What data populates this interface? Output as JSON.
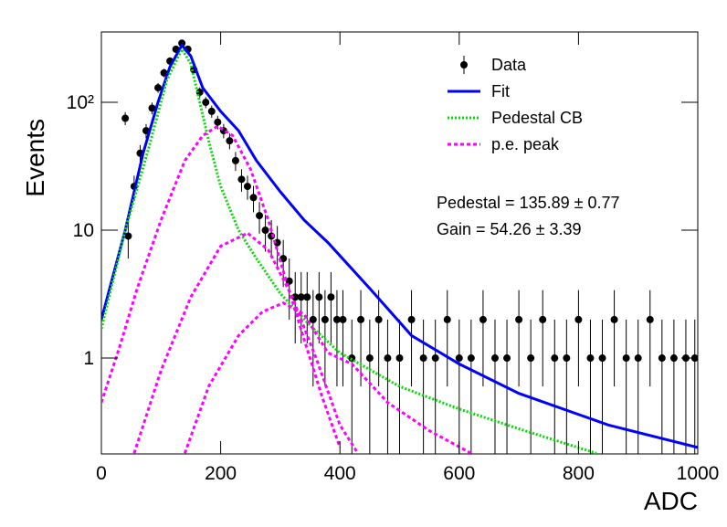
{
  "chart_data": {
    "type": "scatter",
    "x_label": "ADC",
    "y_label": "Events",
    "log_y": true,
    "xlim": [
      0,
      1000
    ],
    "ylim": [
      0.178,
      355
    ],
    "xticks": [
      0,
      200,
      400,
      600,
      800,
      1000
    ],
    "yticks": [
      1,
      10,
      {
        "value": 100,
        "label": "10²"
      }
    ],
    "legend": "upper right",
    "annotations": [
      "Pedestal = 135.89 ± 0.77",
      "Gain = 54.26 ± 3.39"
    ],
    "series": [
      {
        "name": "Data",
        "color": "#000000",
        "style": "errorbar",
        "x": [
          40,
          45,
          55,
          65,
          75,
          85,
          95,
          105,
          115,
          125,
          135,
          145,
          155,
          165,
          175,
          185,
          195,
          205,
          215,
          225,
          235,
          245,
          255,
          265,
          275,
          285,
          295,
          305,
          315,
          325,
          335,
          345,
          355,
          365,
          375,
          385,
          395,
          405,
          420,
          435,
          450,
          465,
          480,
          500,
          520,
          540,
          560,
          580,
          600,
          620,
          640,
          660,
          680,
          700,
          720,
          740,
          760,
          780,
          800,
          820,
          840,
          860,
          880,
          900,
          920,
          940,
          960,
          980,
          995
        ],
        "values": [
          75,
          9,
          22,
          40,
          60,
          90,
          130,
          170,
          210,
          260,
          290,
          260,
          180,
          120,
          100,
          85,
          70,
          60,
          50,
          35,
          25,
          22,
          18,
          13,
          10,
          9,
          8,
          6,
          4,
          3,
          3,
          3,
          2,
          3,
          2,
          3,
          2,
          2,
          1,
          2,
          1,
          2,
          1,
          1,
          2,
          1,
          1,
          2,
          1,
          1,
          2,
          1,
          1,
          2,
          1,
          2,
          1,
          1,
          2,
          1,
          1,
          2,
          1,
          1,
          2,
          1,
          1,
          1,
          1
        ],
        "errors": [
          8.7,
          3,
          4.7,
          6.3,
          7.7,
          9.5,
          11.4,
          13,
          14.5,
          16.1,
          17,
          16.1,
          13.4,
          11,
          10,
          9.2,
          8.4,
          7.7,
          7.1,
          5.9,
          5,
          4.7,
          4.2,
          3.6,
          3.2,
          3,
          2.8,
          2.4,
          2,
          1.7,
          1.7,
          1.7,
          1.4,
          1.7,
          1.4,
          1.7,
          1.4,
          1.4,
          1,
          1.4,
          1,
          1.4,
          1,
          1,
          1.4,
          1,
          1,
          1.4,
          1,
          1,
          1.4,
          1,
          1,
          1.4,
          1,
          1.4,
          1,
          1,
          1.4,
          1,
          1,
          1.4,
          1,
          1,
          1.4,
          1,
          1,
          1,
          1
        ]
      },
      {
        "name": "Fit",
        "color": "#0000ff",
        "style": "solid",
        "curves": [
          {
            "x": [
              0,
              40,
              70,
              95,
              115,
              135,
              150,
              170,
              200,
              230,
              260,
              300,
              340,
              380,
              450,
              520,
              600,
              700,
              850,
              1000
            ],
            "values": [
              2,
              10,
              40,
              100,
              190,
              280,
              230,
              130,
              85,
              60,
              35,
              20,
              12,
              8,
              3.5,
              1.5,
              0.9,
              0.53,
              0.3,
              0.2
            ]
          }
        ]
      },
      {
        "name": "Pedestal CB",
        "color": "#00dd00",
        "style": "dotted",
        "curves": [
          {
            "x": [
              0,
              40,
              80,
              110,
              135,
              150,
              165,
              180,
              200,
              230,
              260,
              300,
              350,
              400,
              500,
              600,
              700,
              830
            ],
            "values": [
              1.7,
              10,
              45,
              150,
              260,
              200,
              100,
              50,
              22,
              10,
              6,
              3.2,
              1.8,
              1.1,
              0.6,
              0.4,
              0.28,
              0.18
            ]
          }
        ]
      },
      {
        "name": "p.e. peak",
        "color": "#ff00ff",
        "style": "dashed",
        "curves": [
          {
            "x": [
              0,
              30,
              60,
              100,
              140,
              170,
              195,
              220,
              250,
              280,
              310,
              340,
              370,
              400
            ],
            "values": [
              0.45,
              1.2,
              3.5,
              12,
              35,
              55,
              65,
              55,
              30,
              12,
              4,
              1.4,
              0.5,
              0.2
            ]
          },
          {
            "x": [
              55,
              100,
              150,
              200,
              245,
              280,
              320,
              360,
              400,
              430
            ],
            "values": [
              0.18,
              0.8,
              3,
              7.5,
              9.5,
              7,
              3,
              1,
              0.3,
              0.18
            ]
          },
          {
            "x": [
              140,
              180,
              230,
              270,
              305,
              340,
              380,
              420,
              480,
              550,
              620
            ],
            "values": [
              0.18,
              0.6,
              1.5,
              2.3,
              2.7,
              2.2,
              1.1,
              0.9,
              0.45,
              0.27,
              0.18
            ]
          }
        ]
      }
    ]
  }
}
